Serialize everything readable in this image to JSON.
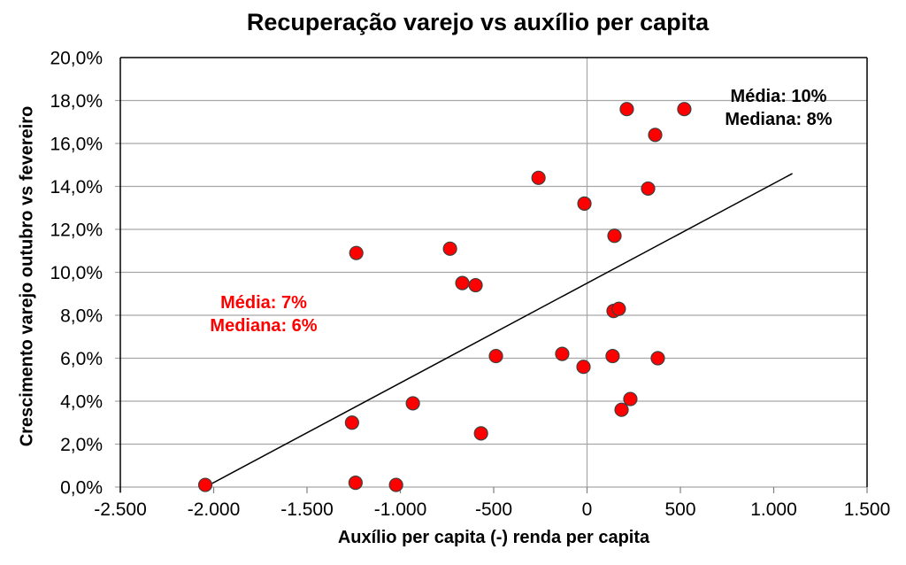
{
  "chart_data": {
    "type": "scatter",
    "title": "Recuperação varejo vs auxílio per capita",
    "xlabel": "Auxílio per capita (-) renda per capita",
    "ylabel": "Crescimento varejo outubro vs fevereiro",
    "xlim": [
      -2500,
      1500
    ],
    "ylim": [
      0,
      20
    ],
    "grid": "horizontal gridlines plus vertical line at x=0",
    "legend": "none",
    "x_ticks": [
      {
        "value": -2500,
        "label": "-2.500"
      },
      {
        "value": -2000,
        "label": "-2.000"
      },
      {
        "value": -1500,
        "label": "-1.500"
      },
      {
        "value": -1000,
        "label": "-1.000"
      },
      {
        "value": -500,
        "label": "-500"
      },
      {
        "value": 0,
        "label": "0"
      },
      {
        "value": 500,
        "label": "500"
      },
      {
        "value": 1000,
        "label": "1.000"
      },
      {
        "value": 1500,
        "label": "1.500"
      }
    ],
    "y_ticks": [
      {
        "value": 0,
        "label": "0,0%"
      },
      {
        "value": 2,
        "label": "2,0%"
      },
      {
        "value": 4,
        "label": "4,0%"
      },
      {
        "value": 6,
        "label": "6,0%"
      },
      {
        "value": 8,
        "label": "8,0%"
      },
      {
        "value": 10,
        "label": "10,0%"
      },
      {
        "value": 12,
        "label": "12,0%"
      },
      {
        "value": 14,
        "label": "14,0%"
      },
      {
        "value": 16,
        "label": "16,0%"
      },
      {
        "value": 18,
        "label": "18,0%"
      },
      {
        "value": 20,
        "label": "20,0%"
      }
    ],
    "points": [
      {
        "x": -2045,
        "y": 0.1
      },
      {
        "x": -1259,
        "y": 3.0
      },
      {
        "x": -1240,
        "y": 0.2
      },
      {
        "x": -1236,
        "y": 10.9
      },
      {
        "x": -1023,
        "y": 0.1
      },
      {
        "x": -933,
        "y": 3.9
      },
      {
        "x": -734,
        "y": 11.1
      },
      {
        "x": -668,
        "y": 9.5
      },
      {
        "x": -597,
        "y": 9.4
      },
      {
        "x": -568,
        "y": 2.5
      },
      {
        "x": -488,
        "y": 6.1
      },
      {
        "x": -260,
        "y": 14.4
      },
      {
        "x": -133,
        "y": 6.2
      },
      {
        "x": -19,
        "y": 5.6
      },
      {
        "x": -14,
        "y": 13.2
      },
      {
        "x": 137,
        "y": 6.1
      },
      {
        "x": 142,
        "y": 8.2
      },
      {
        "x": 147,
        "y": 11.7
      },
      {
        "x": 170,
        "y": 8.3
      },
      {
        "x": 185,
        "y": 3.6
      },
      {
        "x": 213,
        "y": 17.6
      },
      {
        "x": 232,
        "y": 4.1
      },
      {
        "x": 327,
        "y": 13.9
      },
      {
        "x": 365,
        "y": 16.4
      },
      {
        "x": 379,
        "y": 6.0
      },
      {
        "x": 521,
        "y": 17.6
      }
    ],
    "trendline": {
      "x1": -2045,
      "y1": 0.0,
      "x2": 1100,
      "y2": 14.6
    },
    "annotations": {
      "right": {
        "line1": "Média: 10%",
        "line2": "Mediana: 8%",
        "color": "#000000"
      },
      "left": {
        "line1": "Média: 7%",
        "line2": "Mediana: 6%",
        "color": "#ff0000"
      }
    },
    "colors": {
      "point_fill": "#ff0000",
      "point_stroke": "#3f3f3f",
      "gridline": "#a6a6a6",
      "tick": "#808080",
      "border": "#000000",
      "trend": "#000000"
    }
  }
}
